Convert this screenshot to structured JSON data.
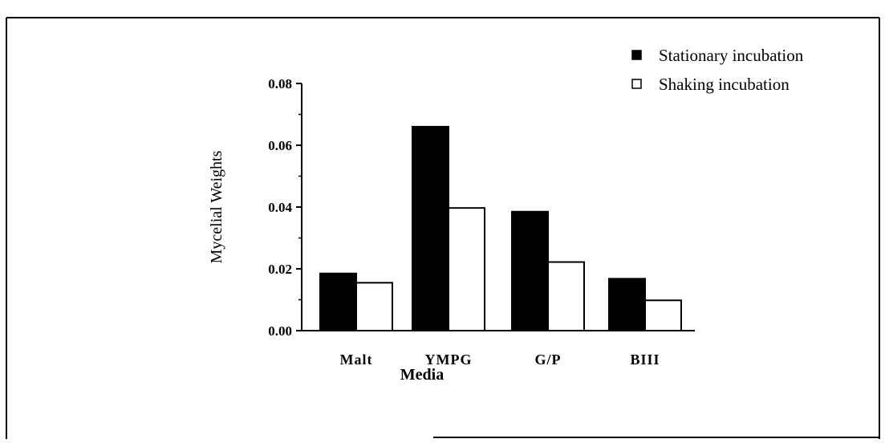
{
  "chart_data": {
    "type": "bar",
    "title": "",
    "xlabel": "Media",
    "ylabel": "Mycelial  Weights",
    "categories": [
      "Malt",
      "YMPG",
      "G/P",
      "BIII"
    ],
    "series": [
      {
        "name": "Stationary incubation",
        "values": [
          0.0185,
          0.066,
          0.0385,
          0.0168
        ],
        "color": "#000000"
      },
      {
        "name": "Shaking incubation",
        "values": [
          0.0155,
          0.0397,
          0.0222,
          0.0098
        ],
        "color": "#ffffff"
      }
    ],
    "ylim": [
      0,
      0.08
    ],
    "yticks": [
      "0.00",
      "0.02",
      "0.04",
      "0.06",
      "0.08"
    ],
    "grid": false,
    "legend_position": "top-right"
  }
}
